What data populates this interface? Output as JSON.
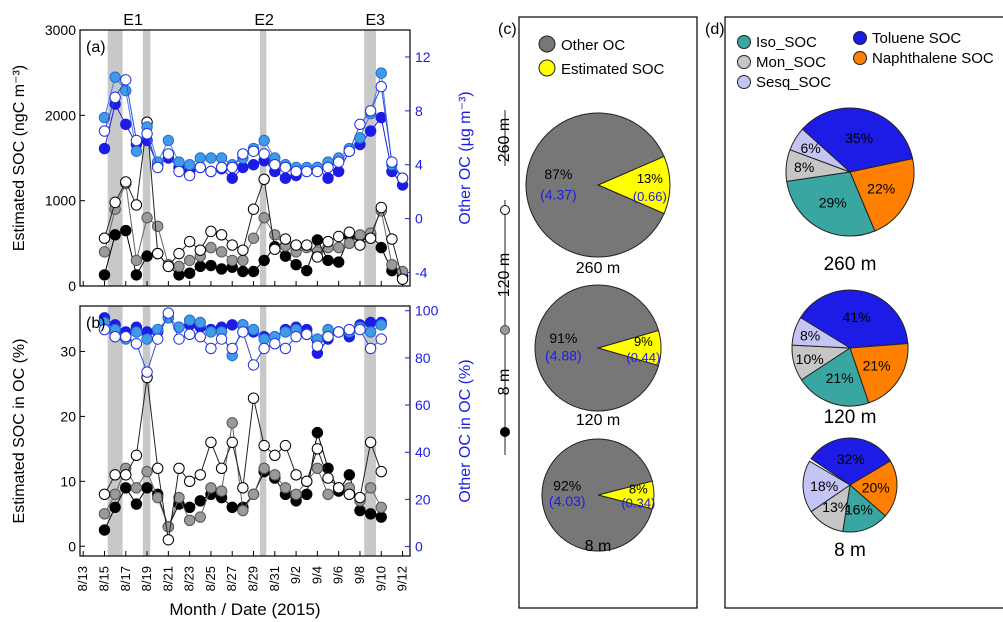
{
  "chart_data": [
    {
      "panel": "(a)",
      "type": "line",
      "x": [
        "8/15",
        "8/16",
        "8/17",
        "8/18",
        "8/19",
        "8/20",
        "8/21",
        "8/22",
        "8/23",
        "8/24",
        "8/25",
        "8/26",
        "8/27",
        "8/28",
        "8/29",
        "8/30",
        "8/31",
        "9/1",
        "9/2",
        "9/3",
        "9/4",
        "9/5",
        "9/6",
        "9/7",
        "9/8",
        "9/9",
        "9/10",
        "9/11",
        "9/12"
      ],
      "xlabel": "Month / Date (2015)",
      "xticks": [
        "8/13",
        "8/15",
        "8/17",
        "8/19",
        "8/21",
        "8/23",
        "8/25",
        "8/27",
        "8/29",
        "8/31",
        "9/2",
        "9/4",
        "9/6",
        "9/8",
        "9/10",
        "9/12"
      ],
      "ylabel": "Estimated SOC (ngC m⁻³)",
      "ylim": [
        0,
        3000
      ],
      "yticks": [
        0,
        1000,
        2000,
        3000
      ],
      "y2label": "Other OC (µg m⁻³)",
      "y2lim": [
        -5,
        14
      ],
      "y2ticks": [
        -4,
        0,
        4,
        8,
        12
      ],
      "series": [
        {
          "height": "8 m",
          "axis": "left",
          "marker": "filled-black",
          "values": [
            130,
            600,
            650,
            130,
            350,
            380,
            230,
            130,
            150,
            230,
            240,
            200,
            220,
            170,
            170,
            300,
            460,
            350,
            250,
            180,
            540,
            300,
            280,
            580,
            580,
            600,
            450,
            180,
            120
          ]
        },
        {
          "height": "120 m",
          "axis": "left",
          "marker": "gray",
          "values": [
            400,
            900,
            1200,
            300,
            800,
            700,
            250,
            230,
            300,
            350,
            450,
            400,
            300,
            300,
            560,
            800,
            600,
            470,
            400,
            450,
            400,
            450,
            450,
            500,
            600,
            620,
            880,
            250,
            170
          ]
        },
        {
          "height": "260 m",
          "axis": "left",
          "marker": "open",
          "values": [
            560,
            980,
            1220,
            950,
            1920,
            380,
            230,
            380,
            520,
            420,
            640,
            600,
            480,
            420,
            900,
            1250,
            430,
            550,
            480,
            480,
            340,
            520,
            580,
            630,
            480,
            560,
            920,
            550,
            80
          ]
        },
        {
          "height": "8 m",
          "axis": "right",
          "marker": "filled-blue",
          "values": [
            5.2,
            8.5,
            7.0,
            5.5,
            5.8,
            4.0,
            4.5,
            3.8,
            3.5,
            3.8,
            3.5,
            3.7,
            3.0,
            3.8,
            4.0,
            4.3,
            3.5,
            3.0,
            3.2,
            3.5,
            3.8,
            3.0,
            3.5,
            5.0,
            5.5,
            6.5,
            7.5,
            3.5,
            2.5
          ]
        },
        {
          "height": "120 m",
          "axis": "right",
          "marker": "light-blue",
          "values": [
            7.5,
            10.5,
            9.5,
            5.0,
            6.8,
            4.2,
            5.8,
            4.2,
            4.0,
            4.5,
            4.5,
            4.5,
            4.0,
            4.5,
            5.2,
            5.8,
            4.5,
            4.0,
            3.8,
            3.8,
            3.8,
            4.2,
            4.5,
            5.2,
            6.0,
            7.8,
            10.8,
            4.0,
            3.0
          ]
        },
        {
          "height": "260 m",
          "axis": "right",
          "marker": "open-blue",
          "values": [
            6.5,
            9.0,
            10.3,
            5.8,
            6.3,
            3.8,
            4.8,
            3.5,
            3.2,
            3.8,
            3.5,
            3.8,
            3.8,
            4.8,
            5.0,
            4.8,
            4.0,
            3.8,
            3.5,
            3.5,
            3.5,
            3.8,
            4.2,
            5.0,
            7.0,
            8.0,
            9.8,
            4.2,
            3.0
          ]
        }
      ],
      "event_labels": [
        "E1",
        "E2",
        "E3"
      ],
      "event_bands": [
        [
          "8/15.3",
          "8/16.7"
        ],
        [
          "8/18.6",
          "8/19.3"
        ],
        [
          "8/29.6",
          "8/30.2"
        ],
        [
          "9/8.4",
          "9/9.5"
        ]
      ]
    },
    {
      "panel": "(b)",
      "type": "line",
      "x": [
        "8/15",
        "8/16",
        "8/17",
        "8/18",
        "8/19",
        "8/20",
        "8/21",
        "8/22",
        "8/23",
        "8/24",
        "8/25",
        "8/26",
        "8/27",
        "8/28",
        "8/29",
        "8/30",
        "8/31",
        "9/1",
        "9/2",
        "9/3",
        "9/4",
        "9/5",
        "9/6",
        "9/7",
        "9/8",
        "9/9",
        "9/10",
        "9/11",
        "9/12"
      ],
      "ylabel": "Estimated SOC in OC (%)",
      "ylim": [
        -1.5,
        37
      ],
      "yticks": [
        0,
        10,
        20,
        30
      ],
      "y2label": "Other OC in OC (%)",
      "y2lim": [
        -4,
        102
      ],
      "y2ticks": [
        0,
        20,
        40,
        60,
        80,
        100
      ],
      "series": [
        {
          "height": "8 m",
          "axis": "left",
          "marker": "filled-black",
          "values": [
            2.5,
            6.0,
            9.0,
            6.5,
            9.0,
            8.0,
            3.0,
            6.5,
            6.0,
            7.0,
            8.0,
            7.5,
            6.0,
            6.0,
            8.0,
            11.5,
            10.5,
            8.0,
            7.0,
            8.0,
            17.5,
            12.0,
            8.5,
            11.0,
            5.5,
            5.0,
            4.5,
            null,
            null
          ]
        },
        {
          "height": "120 m",
          "axis": "left",
          "marker": "gray",
          "values": [
            5.0,
            8.0,
            12.0,
            9.0,
            11.5,
            7.5,
            3.0,
            7.5,
            4.0,
            4.5,
            9.0,
            8.5,
            19.0,
            5.5,
            8.0,
            12.0,
            11.0,
            9.0,
            8.0,
            10.0,
            12.0,
            8.0,
            9.0,
            9.0,
            7.0,
            9.0,
            6.0,
            null,
            null
          ]
        },
        {
          "height": "260 m",
          "axis": "left",
          "marker": "open",
          "values": [
            8.0,
            11.0,
            11.0,
            14.0,
            26.0,
            12.0,
            1.0,
            12.0,
            10.0,
            11.0,
            16.0,
            12.0,
            16.0,
            9.0,
            22.8,
            15.5,
            14.0,
            15.5,
            11.0,
            10.0,
            15.0,
            10.5,
            9.0,
            8.0,
            7.5,
            16.0,
            11.5,
            null,
            null
          ]
        },
        {
          "height": "8 m",
          "axis": "right",
          "marker": "filled-blue",
          "values": [
            97,
            94,
            91,
            93,
            91,
            91,
            97,
            93,
            94,
            93,
            92,
            93,
            94,
            94,
            91,
            89,
            89,
            92,
            93,
            92,
            82,
            88,
            91,
            89,
            94,
            95,
            95,
            null,
            null
          ]
        },
        {
          "height": "120 m",
          "axis": "right",
          "marker": "light-blue",
          "values": [
            95,
            92,
            88,
            91,
            88,
            92,
            97,
            93,
            96,
            95,
            91,
            91,
            81,
            94,
            92,
            88,
            89,
            91,
            92,
            90,
            88,
            92,
            91,
            91,
            93,
            91,
            94,
            null,
            null
          ]
        },
        {
          "height": "260 m",
          "axis": "right",
          "marker": "open-blue",
          "values": [
            92,
            89,
            89,
            86,
            74,
            88,
            99,
            88,
            90,
            89,
            84,
            88,
            84,
            91,
            77,
            84,
            86,
            84,
            89,
            90,
            85,
            89,
            91,
            92,
            92,
            84,
            88,
            null,
            null
          ]
        }
      ]
    },
    {
      "panel": "(c)",
      "type": "pie",
      "legend": [
        "Other OC",
        "Estimated SOC"
      ],
      "colors": {
        "other": "#777777",
        "soc": "#ffff00"
      },
      "side_legend": [
        "260 m",
        "120 m",
        "8 m"
      ],
      "pies": [
        {
          "label": "260 m",
          "slices": [
            {
              "name": "Other OC",
              "pct_label": "87%",
              "value_label": "(4.37)",
              "fraction": 0.87
            },
            {
              "name": "Estimated SOC",
              "pct_label": "13%",
              "value_label": "(0.66)",
              "fraction": 0.13
            }
          ]
        },
        {
          "label": "120 m",
          "slices": [
            {
              "name": "Other OC",
              "pct_label": "91%",
              "value_label": "(4.88)",
              "fraction": 0.91
            },
            {
              "name": "Estimated SOC",
              "pct_label": "9%",
              "value_label": "(0.44)",
              "fraction": 0.09
            }
          ]
        },
        {
          "label": "8 m",
          "slices": [
            {
              "name": "Other OC",
              "pct_label": "92%",
              "value_label": "(4.03)",
              "fraction": 0.92
            },
            {
              "name": "Estimated SOC",
              "pct_label": "8%",
              "value_label": "(0.34)",
              "fraction": 0.08
            }
          ]
        }
      ]
    },
    {
      "panel": "(d)",
      "type": "pie",
      "legend": [
        "Iso_SOC",
        "Toluene SOC",
        "Mon_SOC",
        "Naphthalene SOC",
        "Sesq_SOC"
      ],
      "colors": {
        "Iso_SOC": "#3aa6a1",
        "Mon_SOC": "#c6c6c6",
        "Sesq_SOC": "#c5c5f5",
        "Toluene SOC": "#1c1ce6",
        "Naphthalene SOC": "#ff8000"
      },
      "pies": [
        {
          "label": "260 m",
          "slices": [
            {
              "name": "Toluene SOC",
              "label": "35%",
              "fraction": 0.35
            },
            {
              "name": "Naphthalene SOC",
              "label": "22%",
              "fraction": 0.22
            },
            {
              "name": "Iso_SOC",
              "label": "29%",
              "fraction": 0.29
            },
            {
              "name": "Mon_SOC",
              "label": "8%",
              "fraction": 0.08
            },
            {
              "name": "Sesq_SOC",
              "label": "6%",
              "fraction": 0.06
            }
          ]
        },
        {
          "label": "120 m",
          "slices": [
            {
              "name": "Toluene SOC",
              "label": "41%",
              "fraction": 0.41
            },
            {
              "name": "Naphthalene SOC",
              "label": "21%",
              "fraction": 0.21
            },
            {
              "name": "Iso_SOC",
              "label": "21%",
              "fraction": 0.21
            },
            {
              "name": "Mon_SOC",
              "label": "10%",
              "fraction": 0.1
            },
            {
              "name": "Sesq_SOC",
              "label": "8%",
              "fraction": 0.08
            }
          ]
        },
        {
          "label": "8 m",
          "slices": [
            {
              "name": "Toluene SOC",
              "label": "32%",
              "fraction": 0.32
            },
            {
              "name": "Naphthalene SOC",
              "label": "20%",
              "fraction": 0.2
            },
            {
              "name": "Iso_SOC",
              "label": "16%",
              "fraction": 0.16
            },
            {
              "name": "Mon_SOC",
              "label": "13%",
              "fraction": 0.13
            },
            {
              "name": "Sesq_SOC",
              "label": "18%",
              "fraction": 0.18
            }
          ]
        }
      ]
    }
  ]
}
